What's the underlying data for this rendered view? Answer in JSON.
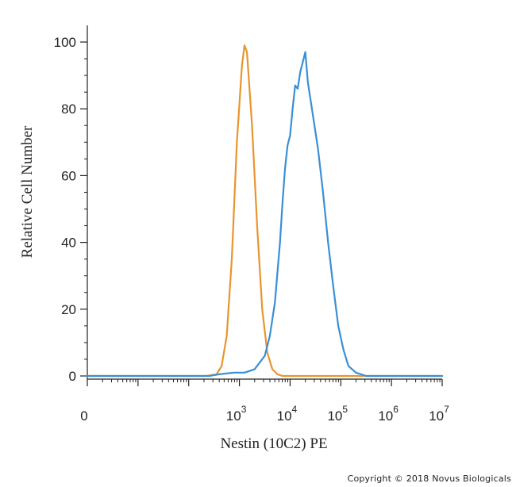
{
  "chart_data": {
    "type": "line",
    "title": "",
    "xlabel": "Nestin (10C2) PE",
    "ylabel": "Relative Cell Number",
    "x_scale": "log",
    "xlim": [
      0,
      7
    ],
    "ylim": [
      0,
      100
    ],
    "y_ticks": [
      0,
      20,
      40,
      60,
      80,
      100
    ],
    "x_ticks": [
      {
        "pos": 0,
        "base": "0",
        "exp": ""
      },
      {
        "pos": 3,
        "base": "10",
        "exp": "3"
      },
      {
        "pos": 4,
        "base": "10",
        "exp": "4"
      },
      {
        "pos": 5,
        "base": "10",
        "exp": "5"
      },
      {
        "pos": 6,
        "base": "10",
        "exp": "6"
      },
      {
        "pos": 7,
        "base": "10",
        "exp": "7"
      }
    ],
    "grid": false,
    "series": [
      {
        "color": "#E8952E",
        "points": [
          [
            0,
            0
          ],
          [
            2.35,
            0
          ],
          [
            2.55,
            0.5
          ],
          [
            2.65,
            3
          ],
          [
            2.75,
            12
          ],
          [
            2.85,
            35
          ],
          [
            2.95,
            70
          ],
          [
            3.05,
            93
          ],
          [
            3.1,
            99
          ],
          [
            3.15,
            97
          ],
          [
            3.25,
            75
          ],
          [
            3.35,
            45
          ],
          [
            3.45,
            20
          ],
          [
            3.55,
            7
          ],
          [
            3.65,
            2
          ],
          [
            3.75,
            0.5
          ],
          [
            3.85,
            0
          ],
          [
            7,
            0
          ]
        ]
      },
      {
        "color": "#3A8FD6",
        "points": [
          [
            0,
            0
          ],
          [
            2.4,
            0
          ],
          [
            2.6,
            0.5
          ],
          [
            2.9,
            1
          ],
          [
            3.1,
            1
          ],
          [
            3.3,
            2
          ],
          [
            3.5,
            6
          ],
          [
            3.6,
            12
          ],
          [
            3.7,
            22
          ],
          [
            3.8,
            40
          ],
          [
            3.85,
            52
          ],
          [
            3.9,
            62
          ],
          [
            3.95,
            69
          ],
          [
            4.0,
            72
          ],
          [
            4.05,
            80
          ],
          [
            4.1,
            87
          ],
          [
            4.15,
            86
          ],
          [
            4.2,
            91
          ],
          [
            4.25,
            94
          ],
          [
            4.3,
            97
          ],
          [
            4.35,
            88
          ],
          [
            4.45,
            78
          ],
          [
            4.55,
            68
          ],
          [
            4.65,
            55
          ],
          [
            4.75,
            40
          ],
          [
            4.85,
            27
          ],
          [
            4.95,
            15
          ],
          [
            5.05,
            8
          ],
          [
            5.15,
            3
          ],
          [
            5.3,
            1
          ],
          [
            5.5,
            0
          ],
          [
            7,
            0
          ]
        ]
      }
    ]
  },
  "copyright": "Copyright © 2018 Novus Biologicals"
}
